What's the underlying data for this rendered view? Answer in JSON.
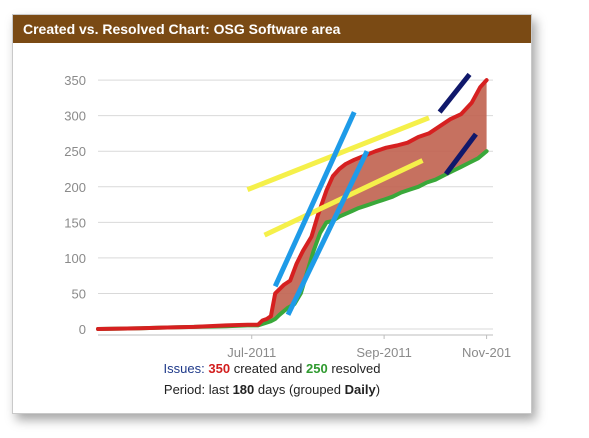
{
  "title": "Created vs. Resolved Chart: OSG Software area",
  "chart_data": {
    "type": "area",
    "x_axis": {
      "tick_labels": [
        "Jul-2011",
        "Sep-2011",
        "Nov-201"
      ],
      "tick_days": [
        72,
        134,
        182
      ],
      "range_days": [
        0,
        185
      ]
    },
    "y_axis": {
      "ticks": [
        0,
        50,
        100,
        150,
        200,
        250,
        300,
        350
      ],
      "ylim": [
        0,
        360
      ]
    },
    "grid": true,
    "x_unit": "days since start of 180-day period",
    "series": [
      {
        "name": "created",
        "color": "#d62020",
        "points": [
          [
            0,
            0
          ],
          [
            20,
            1
          ],
          [
            30,
            2
          ],
          [
            45,
            3
          ],
          [
            60,
            5
          ],
          [
            70,
            6
          ],
          [
            75,
            6
          ],
          [
            77,
            12
          ],
          [
            79,
            14
          ],
          [
            81,
            18
          ],
          [
            83,
            50
          ],
          [
            85,
            56
          ],
          [
            87,
            62
          ],
          [
            90,
            68
          ],
          [
            93,
            92
          ],
          [
            96,
            110
          ],
          [
            100,
            130
          ],
          [
            103,
            160
          ],
          [
            107,
            195
          ],
          [
            110,
            215
          ],
          [
            113,
            225
          ],
          [
            116,
            232
          ],
          [
            120,
            238
          ],
          [
            125,
            244
          ],
          [
            130,
            250
          ],
          [
            135,
            255
          ],
          [
            140,
            258
          ],
          [
            145,
            262
          ],
          [
            150,
            270
          ],
          [
            155,
            275
          ],
          [
            160,
            285
          ],
          [
            165,
            295
          ],
          [
            170,
            302
          ],
          [
            175,
            318
          ],
          [
            179,
            340
          ],
          [
            182,
            350
          ]
        ]
      },
      {
        "name": "resolved",
        "color": "#3aa83a",
        "points": [
          [
            0,
            0
          ],
          [
            20,
            1
          ],
          [
            30,
            2
          ],
          [
            45,
            3
          ],
          [
            60,
            4
          ],
          [
            70,
            5
          ],
          [
            75,
            5
          ],
          [
            77,
            7
          ],
          [
            79,
            9
          ],
          [
            81,
            11
          ],
          [
            83,
            14
          ],
          [
            85,
            20
          ],
          [
            87,
            25
          ],
          [
            89,
            30
          ],
          [
            92,
            35
          ],
          [
            95,
            50
          ],
          [
            98,
            80
          ],
          [
            101,
            110
          ],
          [
            104,
            135
          ],
          [
            107,
            150
          ],
          [
            110,
            152
          ],
          [
            113,
            158
          ],
          [
            116,
            162
          ],
          [
            119,
            166
          ],
          [
            122,
            170
          ],
          [
            126,
            174
          ],
          [
            130,
            178
          ],
          [
            134,
            182
          ],
          [
            138,
            186
          ],
          [
            142,
            192
          ],
          [
            146,
            196
          ],
          [
            150,
            200
          ],
          [
            154,
            206
          ],
          [
            158,
            210
          ],
          [
            162,
            216
          ],
          [
            166,
            222
          ],
          [
            170,
            228
          ],
          [
            174,
            234
          ],
          [
            178,
            240
          ],
          [
            182,
            250
          ]
        ]
      }
    ],
    "fill_color": "#c0624f",
    "annotations": {
      "yellow_lines": [
        [
          [
            70,
            196
          ],
          [
            155,
            297
          ]
        ],
        [
          [
            78,
            132
          ],
          [
            152,
            237
          ]
        ]
      ],
      "light_blue_lines": [
        [
          [
            83,
            60
          ],
          [
            120,
            305
          ]
        ],
        [
          [
            89,
            20
          ],
          [
            126,
            250
          ]
        ]
      ],
      "navy_lines": [
        [
          [
            160,
            305
          ],
          [
            174,
            358
          ]
        ],
        [
          [
            163,
            218
          ],
          [
            177,
            274
          ]
        ]
      ]
    }
  },
  "footer": {
    "issues_label": "Issues:",
    "created_count": "350",
    "created_label": "created and",
    "resolved_count": "250",
    "resolved_label": "resolved",
    "period_label": "Period: last",
    "period_days": "180",
    "period_mid": "days (grouped",
    "period_grouping": "Daily",
    "period_end": ")"
  }
}
